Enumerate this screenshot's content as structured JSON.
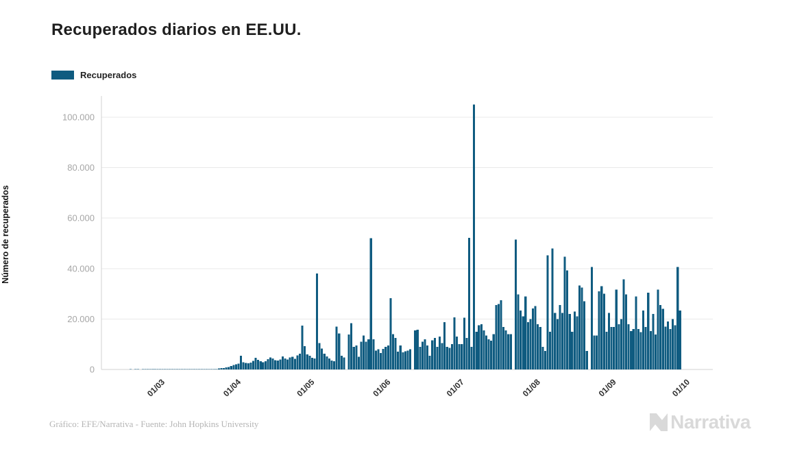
{
  "title": "Recuperados diarios en EE.UU.",
  "legend": {
    "items": [
      {
        "label": "Recuperados",
        "color": "#0f5b80"
      }
    ]
  },
  "y_axis_title": "Número de recuperados",
  "footer": {
    "credit": "Gráfico: EFE/Narrativa - Fuente: John Hopkins University",
    "brand": "Narrativa"
  },
  "colors": {
    "bar": "#0f5b80",
    "grid": "#e9e9e9",
    "axis": "#d2d2d2",
    "y_tick_text": "#a6a6a6",
    "x_tick_text": "#2e2e2e",
    "logo": "#d9d9d9",
    "title_text": "#1f1f1f"
  },
  "chart_data": {
    "type": "bar",
    "title": "Recuperados diarios en EE.UU.",
    "series_name": "Recuperados",
    "xlabel": "",
    "ylabel": "Número de recuperados",
    "ylim": [
      0,
      107000
    ],
    "grid": true,
    "legend_position": "top-left",
    "x_tick_labels": [
      "01/03",
      "01/04",
      "01/05",
      "01/06",
      "01/07",
      "01/08",
      "01/09",
      "01/10"
    ],
    "x_tick_indices": [
      13,
      44,
      74,
      105,
      135,
      166,
      197,
      227
    ],
    "y_tick_values": [
      0,
      20000,
      40000,
      60000,
      80000,
      100000
    ],
    "y_tick_labels": [
      "0",
      "20.000",
      "40.000",
      "60.000",
      "80.000",
      "100.000"
    ],
    "x_start_note": "daily bars, first bar index 0",
    "values": [
      2,
      0,
      1,
      3,
      0,
      2,
      5,
      1,
      4,
      2,
      6,
      3,
      8,
      5,
      7,
      4,
      9,
      6,
      10,
      8,
      12,
      10,
      15,
      12,
      18,
      16,
      22,
      20,
      28,
      25,
      35,
      35,
      45,
      60,
      80,
      110,
      400,
      600,
      500,
      800,
      1000,
      1300,
      1700,
      2000,
      2300,
      5400,
      2800,
      2600,
      2400,
      2700,
      3400,
      4600,
      3800,
      3200,
      2900,
      3300,
      4100,
      4800,
      4300,
      3700,
      3500,
      4000,
      5200,
      4400,
      3900,
      4700,
      5000,
      4200,
      5600,
      6200,
      17400,
      9300,
      6000,
      5500,
      4600,
      4400,
      38000,
      10500,
      8300,
      6200,
      5200,
      4400,
      3600,
      3200,
      17000,
      14200,
      5500,
      4800,
      0,
      13900,
      18300,
      9000,
      9500,
      5000,
      11000,
      13400,
      11000,
      12000,
      52000,
      12000,
      7500,
      8000,
      6500,
      8200,
      9000,
      9500,
      28300,
      14000,
      12500,
      7000,
      9500,
      6800,
      7200,
      7500,
      8000,
      0,
      15500,
      15800,
      9000,
      11000,
      12000,
      9500,
      5500,
      11500,
      12500,
      9000,
      13000,
      10500,
      18800,
      9000,
      8500,
      10000,
      20700,
      13000,
      10000,
      10000,
      20500,
      12500,
      52200,
      9000,
      105000,
      15000,
      17500,
      18000,
      15500,
      13400,
      12000,
      11400,
      14000,
      25600,
      26000,
      27500,
      16900,
      15500,
      14000,
      14000,
      0,
      51500,
      29700,
      23400,
      21000,
      28900,
      18800,
      20000,
      24200,
      25100,
      18000,
      16900,
      9000,
      7400,
      45200,
      15000,
      47900,
      22400,
      20000,
      25600,
      22400,
      44700,
      39200,
      22000,
      15000,
      22900,
      21000,
      33300,
      32500,
      27000,
      7400,
      0,
      40600,
      13400,
      13400,
      31000,
      33000,
      30000,
      15000,
      22400,
      16900,
      16900,
      31600,
      18000,
      20000,
      35700,
      29700,
      18000,
      15200,
      16000,
      28900,
      16000,
      14800,
      23400,
      16900,
      30500,
      15200,
      22000,
      13800,
      31600,
      25600,
      24000,
      17000,
      19000,
      16000,
      20000,
      17500,
      40600,
      23400
    ]
  }
}
